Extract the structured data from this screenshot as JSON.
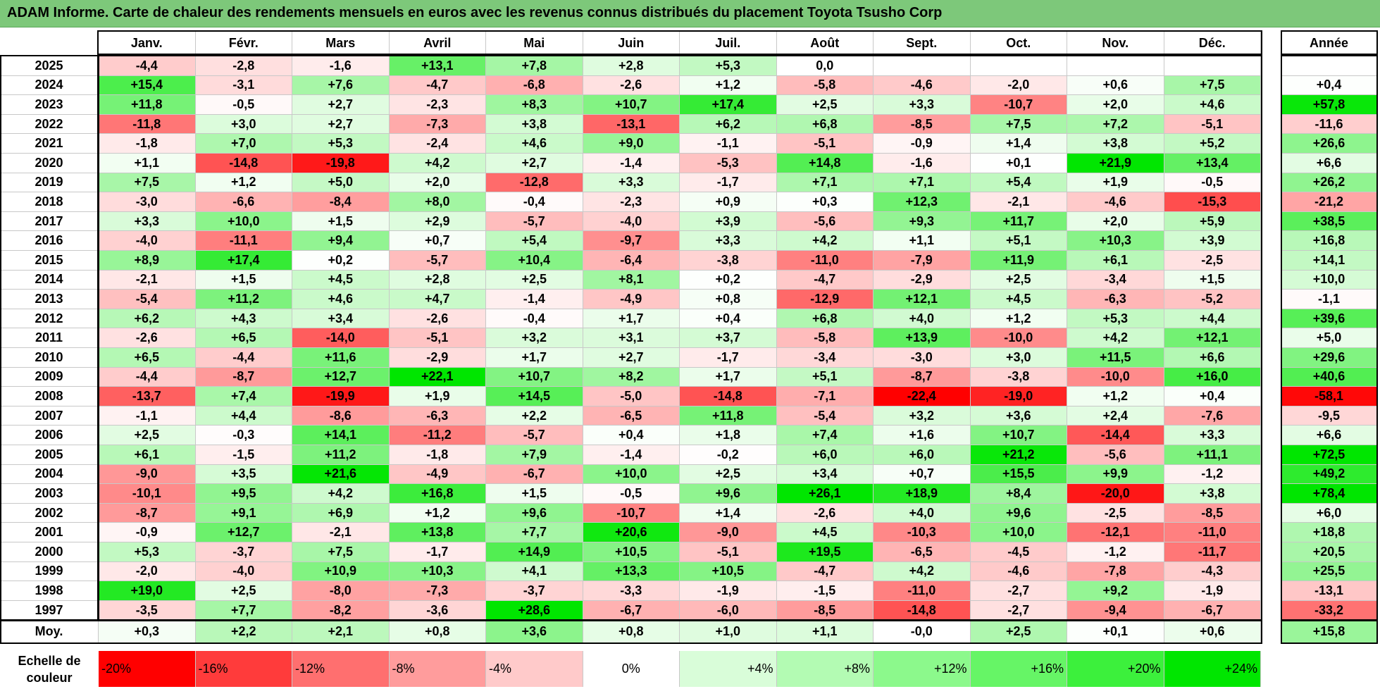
{
  "title": "ADAM Informe. Carte de chaleur des rendements mensuels en euros avec les revenus connus distribués du placement Toyota Tsusho Corp",
  "chart_data": {
    "type": "heatmap",
    "title": "ADAM Informe. Carte de chaleur des rendements mensuels en euros avec les revenus connus distribués du placement Toyota Tsusho Corp",
    "months": [
      "Janv.",
      "Févr.",
      "Mars",
      "Avril",
      "Mai",
      "Juin",
      "Juil.",
      "Août",
      "Sept.",
      "Oct.",
      "Nov.",
      "Déc."
    ],
    "year_header": "Année",
    "rows": [
      {
        "year": "2025",
        "values": [
          "-4,4",
          "-2,8",
          "-1,6",
          "+13,1",
          "+7,8",
          "+2,8",
          "+5,3",
          "0,0",
          "",
          "",
          "",
          ""
        ],
        "annual": ""
      },
      {
        "year": "2024",
        "values": [
          "+15,4",
          "-3,1",
          "+7,6",
          "-4,7",
          "-6,8",
          "-2,6",
          "+1,2",
          "-5,8",
          "-4,6",
          "-2,0",
          "+0,6",
          "+7,5"
        ],
        "annual": "+0,4"
      },
      {
        "year": "2023",
        "values": [
          "+11,8",
          "-0,5",
          "+2,7",
          "-2,3",
          "+8,3",
          "+10,7",
          "+17,4",
          "+2,5",
          "+3,3",
          "-10,7",
          "+2,0",
          "+4,6"
        ],
        "annual": "+57,8"
      },
      {
        "year": "2022",
        "values": [
          "-11,8",
          "+3,0",
          "+2,7",
          "-7,3",
          "+3,8",
          "-13,1",
          "+6,2",
          "+6,8",
          "-8,5",
          "+7,5",
          "+7,2",
          "-5,1"
        ],
        "annual": "-11,6"
      },
      {
        "year": "2021",
        "values": [
          "-1,8",
          "+7,0",
          "+5,3",
          "-2,4",
          "+4,6",
          "+9,0",
          "-1,1",
          "-5,1",
          "-0,9",
          "+1,4",
          "+3,8",
          "+5,2"
        ],
        "annual": "+26,6"
      },
      {
        "year": "2020",
        "values": [
          "+1,1",
          "-14,8",
          "-19,8",
          "+4,2",
          "+2,7",
          "-1,4",
          "-5,3",
          "+14,8",
          "-1,6",
          "+0,1",
          "+21,9",
          "+13,4"
        ],
        "annual": "+6,6"
      },
      {
        "year": "2019",
        "values": [
          "+7,5",
          "+1,2",
          "+5,0",
          "+2,0",
          "-12,8",
          "+3,3",
          "-1,7",
          "+7,1",
          "+7,1",
          "+5,4",
          "+1,9",
          "-0,5"
        ],
        "annual": "+26,2"
      },
      {
        "year": "2018",
        "values": [
          "-3,0",
          "-6,6",
          "-8,4",
          "+8,0",
          "-0,4",
          "-2,3",
          "+0,9",
          "+0,3",
          "+12,3",
          "-2,1",
          "-4,6",
          "-15,3"
        ],
        "annual": "-21,2"
      },
      {
        "year": "2017",
        "values": [
          "+3,3",
          "+10,0",
          "+1,5",
          "+2,9",
          "-5,7",
          "-4,0",
          "+3,9",
          "-5,6",
          "+9,3",
          "+11,7",
          "+2,0",
          "+5,9"
        ],
        "annual": "+38,5"
      },
      {
        "year": "2016",
        "values": [
          "-4,0",
          "-11,1",
          "+9,4",
          "+0,7",
          "+5,4",
          "-9,7",
          "+3,3",
          "+4,2",
          "+1,1",
          "+5,1",
          "+10,3",
          "+3,9"
        ],
        "annual": "+16,8"
      },
      {
        "year": "2015",
        "values": [
          "+8,9",
          "+17,4",
          "+0,2",
          "-5,7",
          "+10,4",
          "-6,4",
          "-3,8",
          "-11,0",
          "-7,9",
          "+11,9",
          "+6,1",
          "-2,5"
        ],
        "annual": "+14,1"
      },
      {
        "year": "2014",
        "values": [
          "-2,1",
          "+1,5",
          "+4,5",
          "+2,8",
          "+2,5",
          "+8,1",
          "+0,2",
          "-4,7",
          "-2,9",
          "+2,5",
          "-3,4",
          "+1,5"
        ],
        "annual": "+10,0"
      },
      {
        "year": "2013",
        "values": [
          "-5,4",
          "+11,2",
          "+4,6",
          "+4,7",
          "-1,4",
          "-4,9",
          "+0,8",
          "-12,9",
          "+12,1",
          "+4,5",
          "-6,3",
          "-5,2"
        ],
        "annual": "-1,1"
      },
      {
        "year": "2012",
        "values": [
          "+6,2",
          "+4,3",
          "+3,4",
          "-2,6",
          "-0,4",
          "+1,7",
          "+0,4",
          "+6,8",
          "+4,0",
          "+1,2",
          "+5,3",
          "+4,4"
        ],
        "annual": "+39,6"
      },
      {
        "year": "2011",
        "values": [
          "-2,6",
          "+6,5",
          "-14,0",
          "-5,1",
          "+3,2",
          "+3,1",
          "+3,7",
          "-5,8",
          "+13,9",
          "-10,0",
          "+4,2",
          "+12,1"
        ],
        "annual": "+5,0"
      },
      {
        "year": "2010",
        "values": [
          "+6,5",
          "-4,4",
          "+11,6",
          "-2,9",
          "+1,7",
          "+2,7",
          "-1,7",
          "-3,4",
          "-3,0",
          "+3,0",
          "+11,5",
          "+6,6"
        ],
        "annual": "+29,6"
      },
      {
        "year": "2009",
        "values": [
          "-4,4",
          "-8,7",
          "+12,7",
          "+22,1",
          "+10,7",
          "+8,2",
          "+1,7",
          "+5,1",
          "-8,7",
          "-3,8",
          "-10,0",
          "+16,0"
        ],
        "annual": "+40,6"
      },
      {
        "year": "2008",
        "values": [
          "-13,7",
          "+7,4",
          "-19,9",
          "+1,9",
          "+14,5",
          "-5,0",
          "-14,8",
          "-7,1",
          "-22,4",
          "-19,0",
          "+1,2",
          "+0,4"
        ],
        "annual": "-58,1"
      },
      {
        "year": "2007",
        "values": [
          "-1,1",
          "+4,4",
          "-8,6",
          "-6,3",
          "+2,2",
          "-6,5",
          "+11,8",
          "-5,4",
          "+3,2",
          "+3,6",
          "+2,4",
          "-7,6"
        ],
        "annual": "-9,5"
      },
      {
        "year": "2006",
        "values": [
          "+2,5",
          "-0,3",
          "+14,1",
          "-11,2",
          "-5,7",
          "+0,4",
          "+1,8",
          "+7,4",
          "+1,6",
          "+10,7",
          "-14,4",
          "+3,3"
        ],
        "annual": "+6,6"
      },
      {
        "year": "2005",
        "values": [
          "+6,1",
          "-1,5",
          "+11,2",
          "-1,8",
          "+7,9",
          "-1,4",
          "-0,2",
          "+6,0",
          "+6,0",
          "+21,2",
          "-5,6",
          "+11,1"
        ],
        "annual": "+72,5"
      },
      {
        "year": "2004",
        "values": [
          "-9,0",
          "+3,5",
          "+21,6",
          "-4,9",
          "-6,7",
          "+10,0",
          "+2,5",
          "+3,4",
          "+0,7",
          "+15,5",
          "+9,9",
          "-1,2"
        ],
        "annual": "+49,2"
      },
      {
        "year": "2003",
        "values": [
          "-10,1",
          "+9,5",
          "+4,2",
          "+16,8",
          "+1,5",
          "-0,5",
          "+9,6",
          "+26,1",
          "+18,9",
          "+8,4",
          "-20,0",
          "+3,8"
        ],
        "annual": "+78,4"
      },
      {
        "year": "2002",
        "values": [
          "-8,7",
          "+9,1",
          "+6,9",
          "+1,2",
          "+9,6",
          "-10,7",
          "+1,4",
          "-2,6",
          "+4,0",
          "+9,6",
          "-2,5",
          "-8,5"
        ],
        "annual": "+6,0"
      },
      {
        "year": "2001",
        "values": [
          "-0,9",
          "+12,7",
          "-2,1",
          "+13,8",
          "+7,7",
          "+20,6",
          "-9,0",
          "+4,5",
          "-10,3",
          "+10,0",
          "-12,1",
          "-11,0"
        ],
        "annual": "+18,8"
      },
      {
        "year": "2000",
        "values": [
          "+5,3",
          "-3,7",
          "+7,5",
          "-1,7",
          "+14,9",
          "+10,5",
          "-5,1",
          "+19,5",
          "-6,5",
          "-4,5",
          "-1,2",
          "-11,7"
        ],
        "annual": "+20,5"
      },
      {
        "year": "1999",
        "values": [
          "-2,0",
          "-4,0",
          "+10,9",
          "+10,3",
          "+4,1",
          "+13,3",
          "+10,5",
          "-4,7",
          "+4,2",
          "-4,6",
          "-7,8",
          "-4,3"
        ],
        "annual": "+25,5"
      },
      {
        "year": "1998",
        "values": [
          "+19,0",
          "+2,5",
          "-8,0",
          "-7,3",
          "-3,7",
          "-3,3",
          "-1,9",
          "-1,5",
          "-11,0",
          "-2,7",
          "+9,2",
          "-1,9"
        ],
        "annual": "-13,1"
      },
      {
        "year": "1997",
        "values": [
          "-3,5",
          "+7,7",
          "-8,2",
          "-3,6",
          "+28,6",
          "-6,7",
          "-6,0",
          "-8,5",
          "-14,8",
          "-2,7",
          "-9,4",
          "-6,7"
        ],
        "annual": "-33,2"
      }
    ],
    "average": {
      "label": "Moy.",
      "values": [
        "+0,3",
        "+2,2",
        "+2,1",
        "+0,8",
        "+3,6",
        "+0,8",
        "+1,0",
        "+1,1",
        "-0,0",
        "+2,5",
        "+0,1",
        "+0,6"
      ],
      "annual": "+15,8"
    },
    "scale": {
      "label": "Echelle de couleur",
      "steps": [
        {
          "text": "-20%",
          "color": "#ff0000"
        },
        {
          "text": "-16%",
          "color": "#ff3b3b"
        },
        {
          "text": "-12%",
          "color": "#ff6f6f"
        },
        {
          "text": "-8%",
          "color": "#ff9c9c"
        },
        {
          "text": "-4%",
          "color": "#ffcaca"
        },
        {
          "text": "0%",
          "color": "#ffffff"
        },
        {
          "text": "+4%",
          "color": "#d9fdd9"
        },
        {
          "text": "+8%",
          "color": "#b3fbb3"
        },
        {
          "text": "+12%",
          "color": "#8cf98c"
        },
        {
          "text": "+16%",
          "color": "#66f566"
        },
        {
          "text": "+20%",
          "color": "#3cf03c"
        },
        {
          "text": "+24%",
          "color": "#00e600"
        }
      ]
    },
    "colors": {
      "negative_max": "#ff0000",
      "neutral": "#ffffff",
      "positive_max": "#00e600",
      "title_bar": "#7dc87a"
    }
  }
}
